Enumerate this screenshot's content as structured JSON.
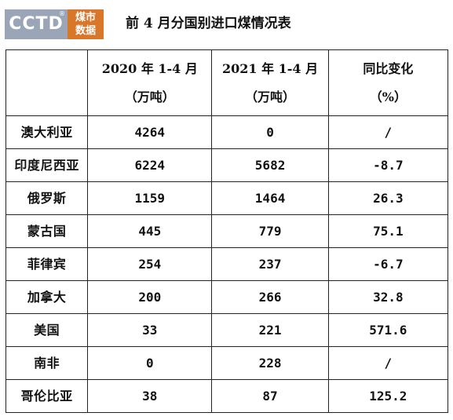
{
  "logo": {
    "text": "CCTD",
    "registered": "®",
    "tag_line1": "煤市",
    "tag_line2": "数据"
  },
  "title": "前 4 月分国别进口煤情况表",
  "table": {
    "headers": [
      {
        "line1": "",
        "line2": ""
      },
      {
        "line1": "2020 年 1-4 月",
        "line2": "（万吨）"
      },
      {
        "line1": "2021 年 1-4 月",
        "line2": "（万吨）"
      },
      {
        "line1": "同比变化",
        "line2": "（%）"
      }
    ],
    "rows": [
      {
        "country": "澳大利亚",
        "y2020": "4264",
        "y2021": "0",
        "change": "/"
      },
      {
        "country": "印度尼西亚",
        "y2020": "6224",
        "y2021": "5682",
        "change": "-8.7"
      },
      {
        "country": "俄罗斯",
        "y2020": "1159",
        "y2021": "1464",
        "change": "26.3"
      },
      {
        "country": "蒙古国",
        "y2020": "445",
        "y2021": "779",
        "change": "75.1"
      },
      {
        "country": "菲律宾",
        "y2020": "254",
        "y2021": "237",
        "change": "-6.7"
      },
      {
        "country": "加拿大",
        "y2020": "200",
        "y2021": "266",
        "change": "32.8"
      },
      {
        "country": "美国",
        "y2020": "33",
        "y2021": "221",
        "change": "571.6"
      },
      {
        "country": "南非",
        "y2020": "0",
        "y2021": "228",
        "change": "/"
      },
      {
        "country": "哥伦比亚",
        "y2020": "38",
        "y2021": "87",
        "change": "125.2"
      }
    ]
  },
  "colors": {
    "logo_gray": "#9aa6b8",
    "logo_orange": "#d8762a",
    "border": "#222222"
  }
}
